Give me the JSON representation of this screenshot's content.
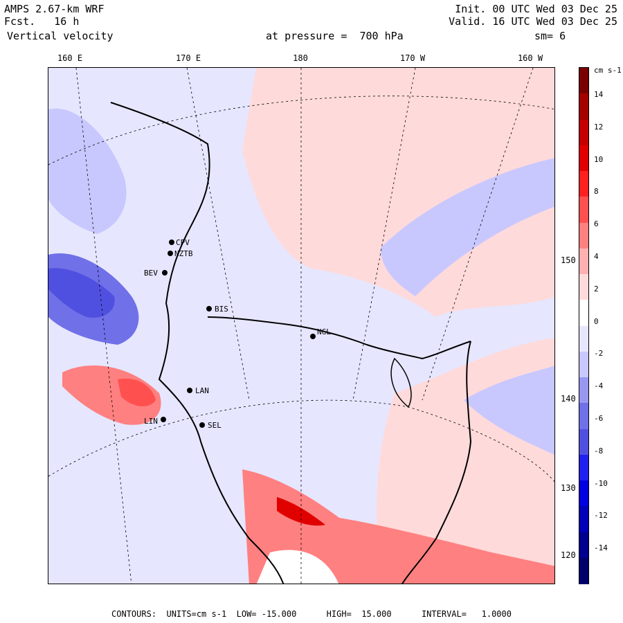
{
  "header": {
    "model": "AMPS 2.67-km WRF",
    "fcst": "Fcst.   16 h",
    "field": "Vertical velocity",
    "init": "Init. 00 UTC Wed 03 Dec 25",
    "valid": "Valid. 16 UTC Wed 03 Dec 25",
    "pressure": "at pressure =  700 hPa",
    "sm": "sm= 6"
  },
  "lon_labels": [
    "160 E",
    "170 E",
    "180",
    "170 W",
    "160 W"
  ],
  "lat_labels": [
    "150 W",
    "140 W",
    "130 W",
    "120 W"
  ],
  "stations": [
    "CPV",
    "NZTB",
    "BEV",
    "BIS",
    "NGL",
    "LAN",
    "LIN",
    "SEL"
  ],
  "colorbar": {
    "units": "cm s-1",
    "ticks": [
      "14",
      "12",
      "10",
      "8",
      "6",
      "4",
      "2",
      "0",
      "-2",
      "-4",
      "-6",
      "-8",
      "-10",
      "-12",
      "-14"
    ],
    "colors": [
      "#7a0000",
      "#a50000",
      "#c40000",
      "#e00000",
      "#ff2020",
      "#ff5050",
      "#ff8080",
      "#ffb0b0",
      "#ffdada",
      "#ffffff",
      "#e6e6ff",
      "#c8c8ff",
      "#9898f0",
      "#7070e8",
      "#5050e0",
      "#2020f0",
      "#0000e0",
      "#0000b8",
      "#000090",
      "#00006a"
    ]
  },
  "footer": "CONTOURS:  UNITS=cm s-1  LOW= -15.000      HIGH=  15.000      INTERVAL=   1.0000"
}
